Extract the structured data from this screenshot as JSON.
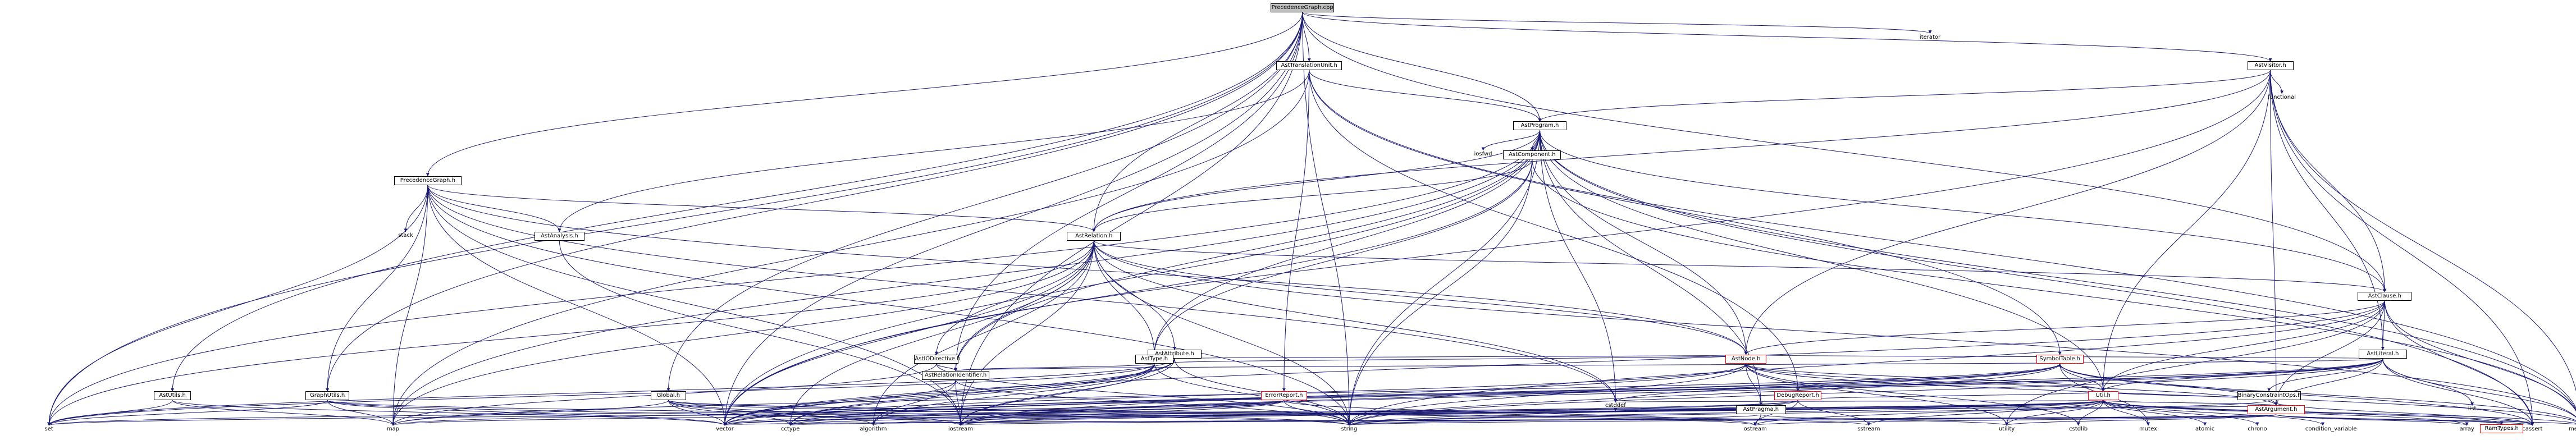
{
  "graph": {
    "nodes": {
      "precedencegraph_cpp": "PrecedenceGraph.cpp",
      "iterator": "iterator",
      "asttranslationunit_h": "AstTranslationUnit.h",
      "astvisitor_h": "AstVisitor.h",
      "functional": "functional",
      "astprogram_h": "AstProgram.h",
      "precedencegraph_h": "PrecedenceGraph.h",
      "iosfwd": "iosfwd",
      "astcomponent_h": "AstComponent.h",
      "stack": "stack",
      "astanalysis_h": "AstAnalysis.h",
      "astrelation_h": "AstRelation.h",
      "astclause_h": "AstClause.h",
      "astliteral_h": "AstLiteral.h",
      "list": "list",
      "astattribute_h": "AstAttribute.h",
      "astpragma_h": "AstPragma.h",
      "astargument_h": "AstArgument.h",
      "astiodirective_h": "AstIODirective.h",
      "asttype_h": "AstType.h",
      "astnode_h": "AstNode.h",
      "symboltable_h": "SymbolTable.h",
      "astrelationidentifier_h": "AstRelationIdentifier.h",
      "astutils_h": "AstUtils.h",
      "graphutils_h": "GraphUtils.h",
      "global_h": "Global.h",
      "errorreport_h": "ErrorReport.h",
      "debugreport_h": "DebugReport.h",
      "util_h": "Util.h",
      "binaryconstraintops_h": "BinaryConstraintOps.h",
      "set": "set",
      "map": "map",
      "vector": "vector",
      "cctype": "cctype",
      "algorithm": "algorithm",
      "iostream": "iostream",
      "string": "string",
      "ostream": "ostream",
      "sstream": "sstream",
      "utility": "utility",
      "cstdlib": "cstdlib",
      "mutex": "mutex",
      "atomic": "atomic",
      "chrono": "chrono",
      "condition_variable": "condition_variable",
      "ramtypes_h": "RamTypes.h",
      "array": "array",
      "cassert": "cassert",
      "memory": "memory",
      "cstddef": "cstddef"
    }
  }
}
